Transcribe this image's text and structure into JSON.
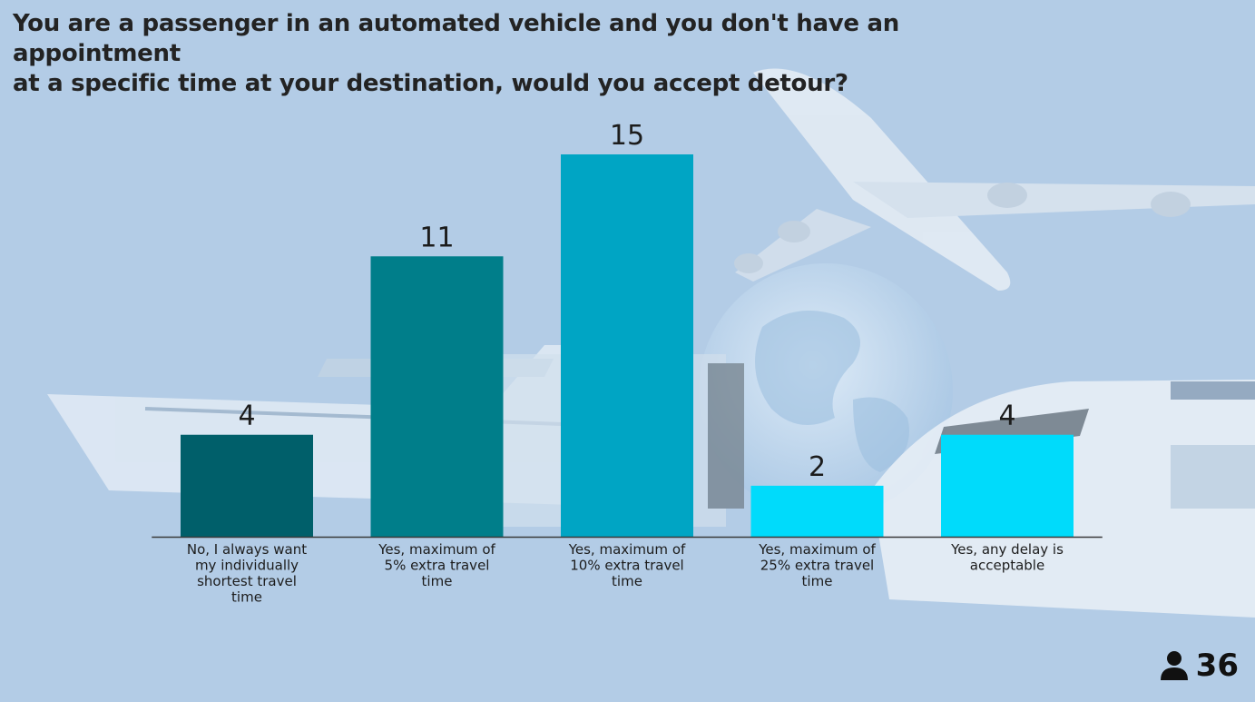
{
  "question": {
    "line1": "You are a passenger in an automated vehicle and you don't have an appointment",
    "line2": "at a specific time at your destination, would you accept detour?"
  },
  "responses": {
    "count": "36",
    "icon": "person-icon"
  },
  "colors": {
    "background": "#b3cce6",
    "text": "#1c1c1c"
  },
  "chart_data": {
    "type": "bar",
    "categories": [
      "No, I always want my individually shortest travel time",
      "Yes, maximum of 5% extra travel time",
      "Yes, maximum of 10% extra travel time",
      "Yes, maximum of 25% extra travel time",
      "Yes, any delay is acceptable"
    ],
    "category_lines": [
      [
        "No, I always want",
        "my individually",
        "shortest travel",
        "time"
      ],
      [
        "Yes, maximum of",
        "5% extra travel",
        "time"
      ],
      [
        "Yes, maximum of",
        "10% extra travel",
        "time"
      ],
      [
        "Yes, maximum of",
        "25% extra travel",
        "time"
      ],
      [
        "Yes, any delay is",
        "acceptable"
      ]
    ],
    "values": [
      4,
      11,
      15,
      2,
      4
    ],
    "colors": [
      "#005f6a",
      "#007e8a",
      "#00a5c4",
      "#00dbfb",
      "#00dbfb"
    ],
    "ylim": [
      0,
      15
    ],
    "grid": false,
    "data_labels": true
  }
}
